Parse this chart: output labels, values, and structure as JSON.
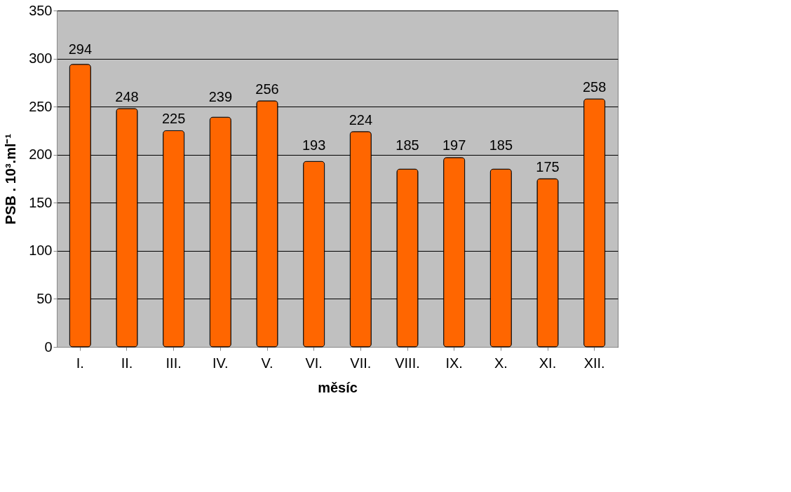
{
  "chart_data": {
    "type": "bar",
    "xlabel": "měsíc",
    "ylabel": "PSB . 10³.ml⁻¹",
    "categories": [
      "I.",
      "II.",
      "III.",
      "IV.",
      "V.",
      "VI.",
      "VII.",
      "VIII.",
      "IX.",
      "X.",
      "XI.",
      "XII."
    ],
    "values": [
      294,
      248,
      225,
      239,
      256,
      193,
      224,
      185,
      197,
      185,
      175,
      258
    ],
    "color": "#ff6600",
    "ylim": [
      0,
      350
    ],
    "yticks": [
      0,
      50,
      100,
      150,
      200,
      250,
      300,
      350
    ],
    "grid": "y",
    "data_labels": true
  }
}
